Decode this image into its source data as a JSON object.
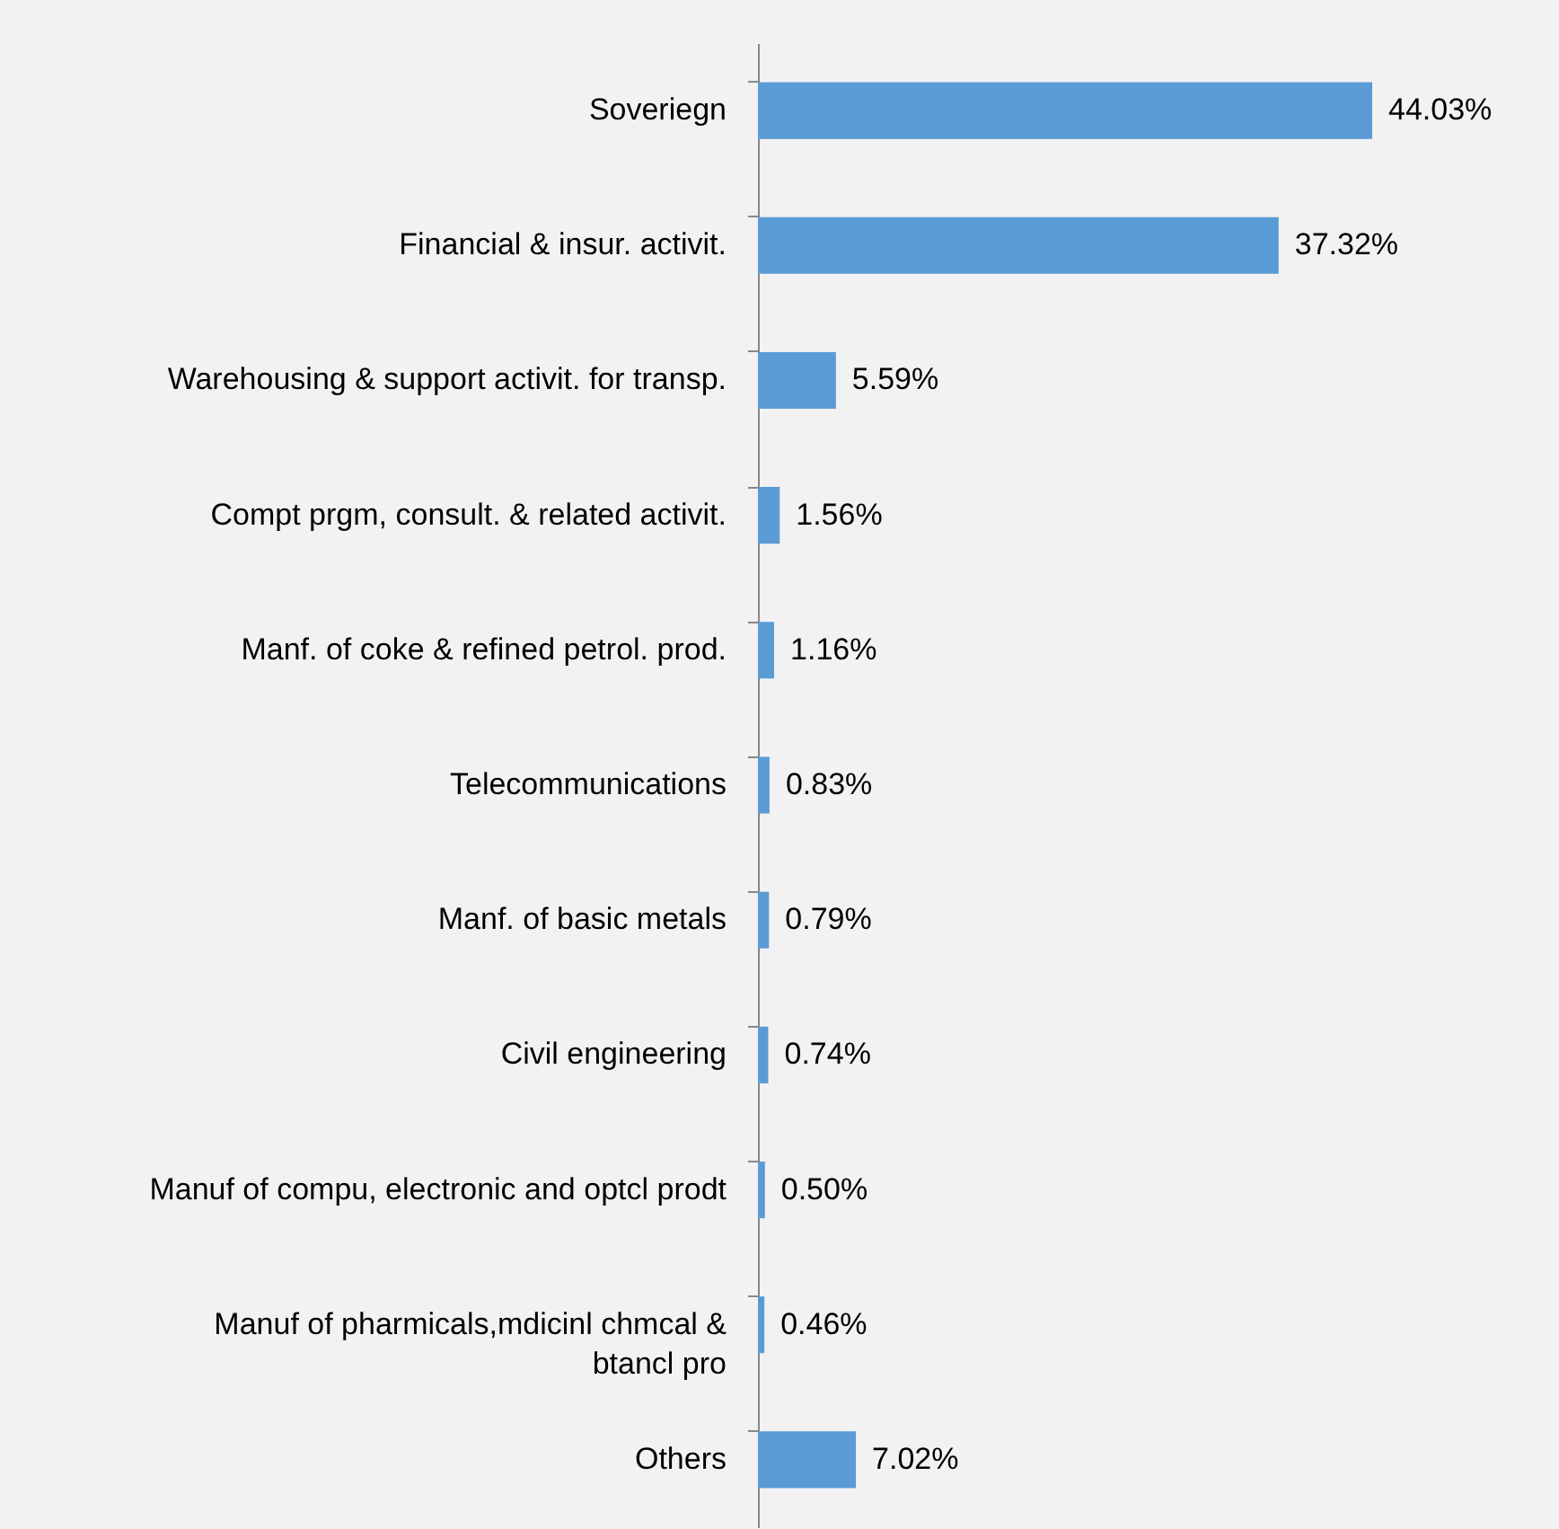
{
  "chart_data": {
    "type": "bar",
    "orientation": "horizontal",
    "color": "#5b9bd5",
    "categories": [
      "Soveriegn",
      "Financial & insur. activit.",
      "Warehousing & support activit. for transp.",
      "Compt prgm, consult. & related activit.",
      "Manf. of coke & refined petrol. prod.",
      "Telecommunications",
      "Manf. of basic metals",
      "Civil engineering",
      "Manuf of compu, electronic and optcl prodt",
      "Manuf of pharmicals,mdicinl chmcal & btancl pro",
      "Others"
    ],
    "values": [
      44.03,
      37.32,
      5.59,
      1.56,
      1.16,
      0.83,
      0.79,
      0.74,
      0.5,
      0.46,
      7.02
    ],
    "value_labels": [
      "44.03%",
      "37.32%",
      "5.59%",
      "1.56%",
      "1.16%",
      "0.83%",
      "0.79%",
      "0.74%",
      "0.50%",
      "0.46%",
      "7.02%"
    ]
  }
}
